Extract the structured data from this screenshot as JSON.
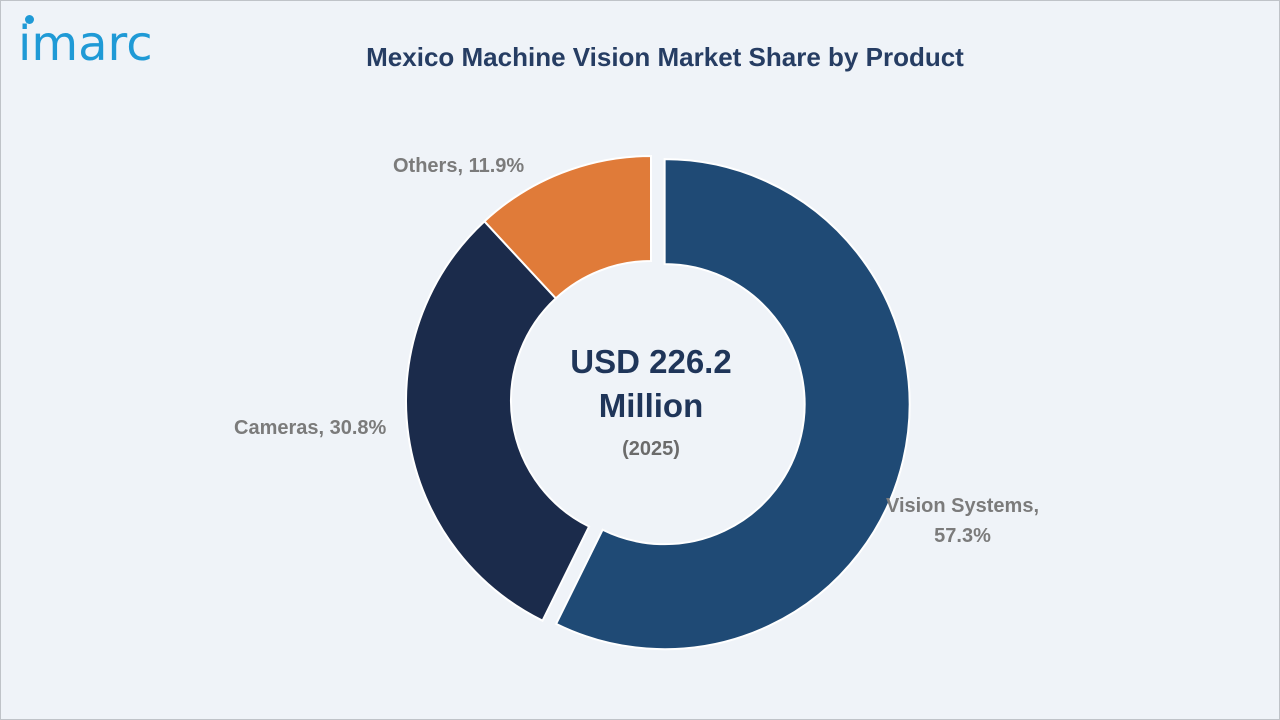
{
  "logo": {
    "text": "imarc"
  },
  "chart_data": {
    "type": "pie",
    "style": "donut",
    "title": "Mexico Machine Vision Market Share by Product",
    "center_value": "USD 226.2 Million",
    "center_year": "(2025)",
    "slices": [
      {
        "name": "Vision Systems",
        "value": 57.3,
        "label": "Vision Systems, 57.3%",
        "color": "#1f4a75",
        "exploded": true
      },
      {
        "name": "Cameras",
        "value": 30.8,
        "label": "Cameras, 30.8%",
        "color": "#1b2b4b",
        "exploded": false
      },
      {
        "name": "Others",
        "value": 11.9,
        "label": "Others, 11.9%",
        "color": "#e07b39",
        "exploded": false
      }
    ]
  }
}
